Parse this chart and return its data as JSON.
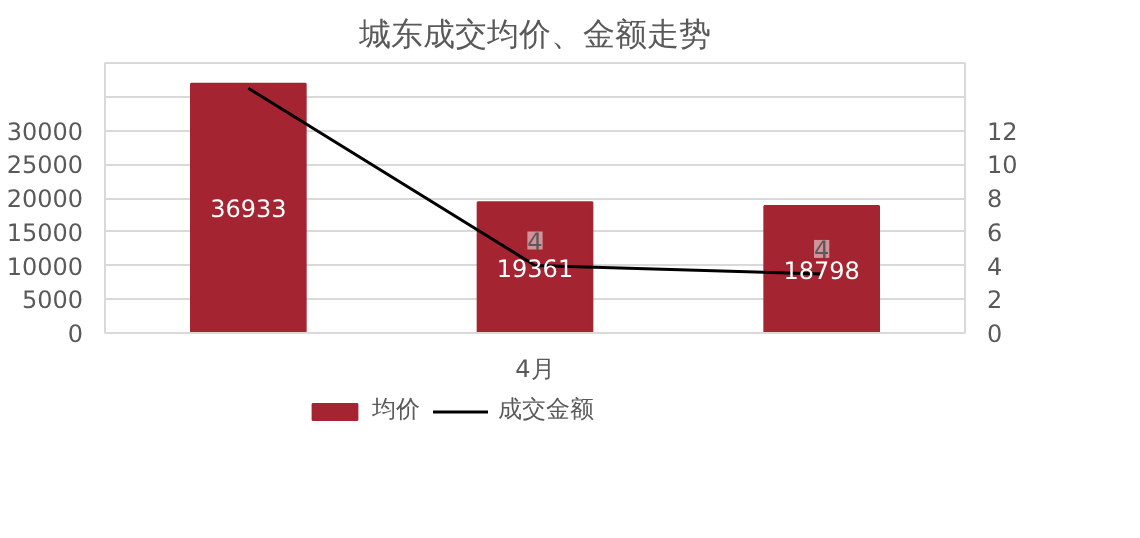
{
  "chart_data": {
    "type": "bar",
    "title": "城东成交均价、金额走势",
    "categories": [
      null,
      "4月",
      null
    ],
    "series": [
      {
        "name": "均价",
        "color": "#a52431",
        "values": [
          36933,
          19361,
          18798
        ],
        "value_labels": [
          "36933",
          "19361",
          "18798"
        ]
      },
      {
        "name": "成交金额",
        "type": "line",
        "axis": "y2",
        "color": "#000000",
        "values": [
          14.5,
          4.0,
          3.5
        ],
        "value_labels": [
          null,
          "4",
          "4"
        ]
      }
    ],
    "ylim": [
      0,
      40000
    ],
    "yticks": [
      0,
      5000,
      10000,
      15000,
      20000,
      25000,
      30000,
      {
        "value": 35000,
        "label": null
      },
      {
        "value": 40000,
        "label": null
      }
    ],
    "y2lim": [
      0,
      16
    ],
    "y2ticks": [
      0,
      2,
      4,
      6,
      8,
      10,
      12
    ],
    "grid": "y",
    "legend": "bottom",
    "marker": "none",
    "line_style": "solid"
  }
}
